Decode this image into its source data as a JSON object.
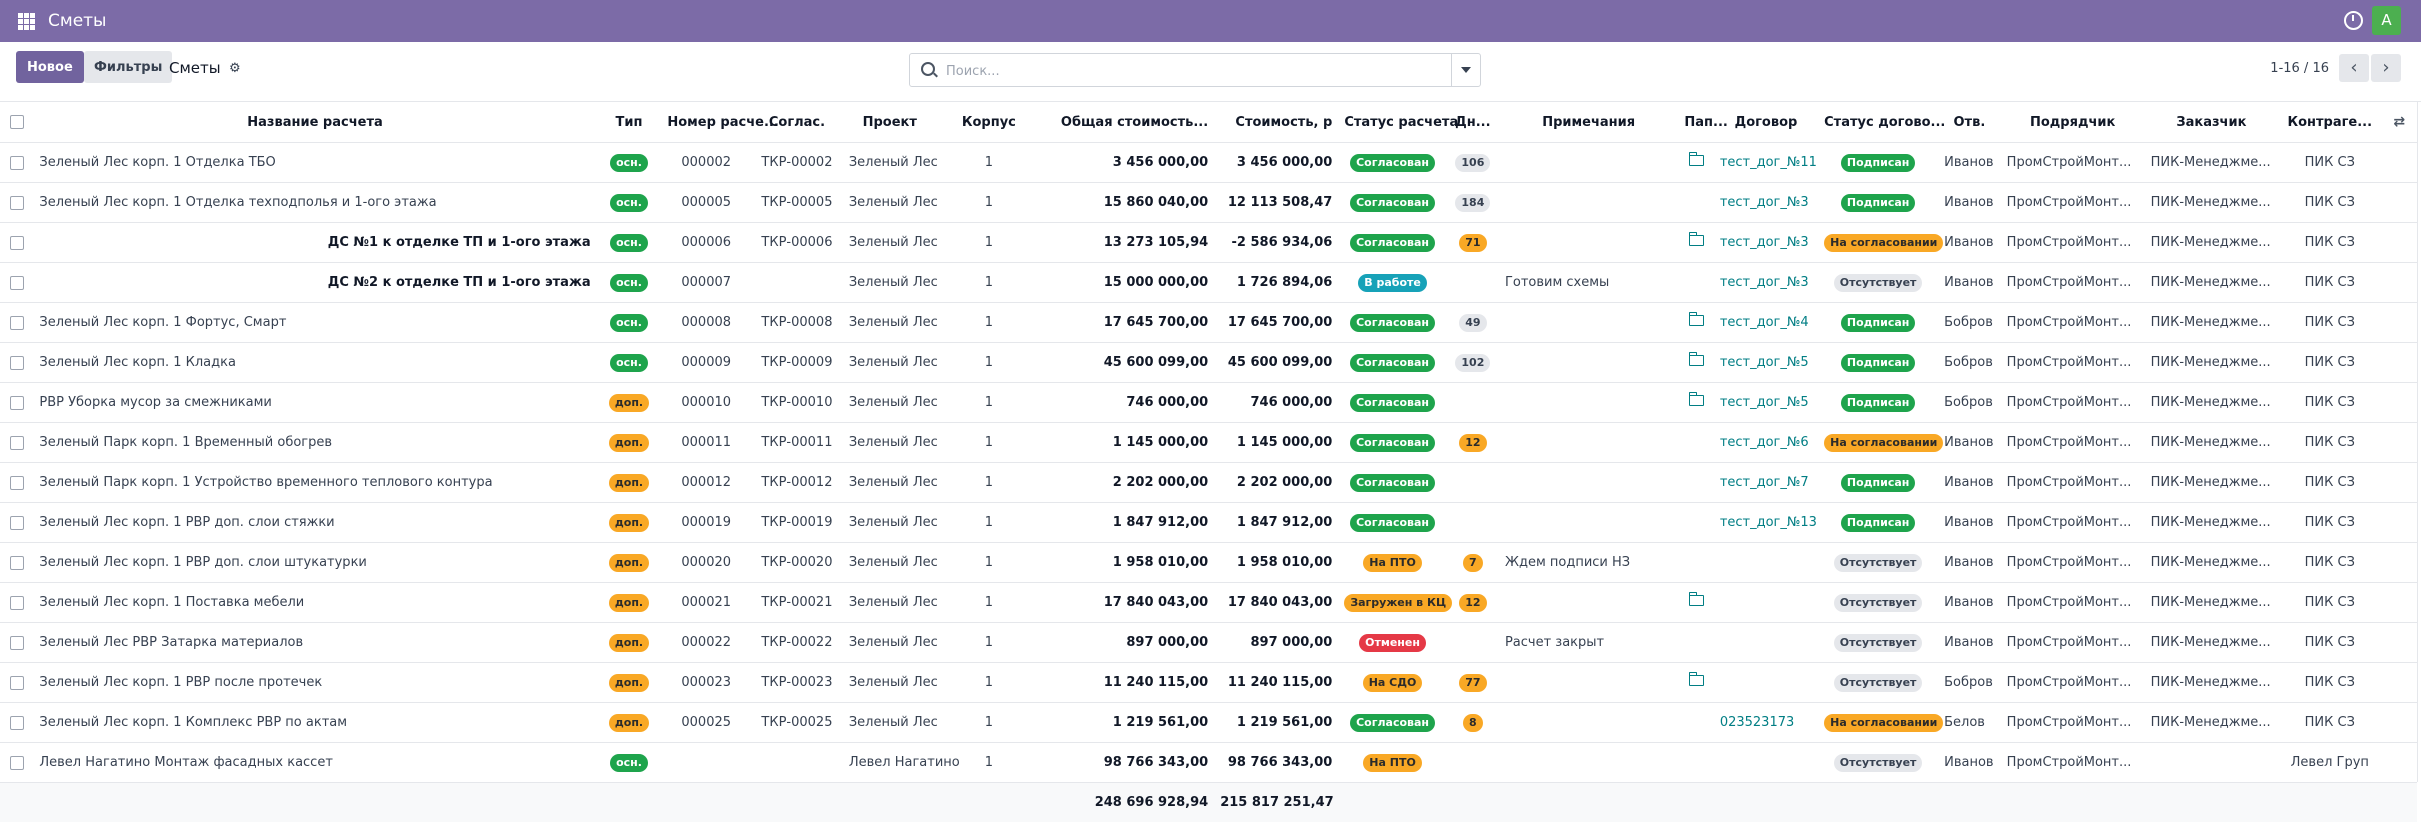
{
  "navbar": {
    "app_title": "Сметы",
    "avatar_letter": "A"
  },
  "controls": {
    "new_label": "Новое",
    "filters_label": "Фильтры",
    "breadcrumb": "Сметы",
    "search_placeholder": "Поиск...",
    "pager": "1-16 / 16"
  },
  "columns": [
    "Название расчета",
    "Тип",
    "Номер расче...",
    "Соглас.",
    "Проект",
    "Корпус",
    "Общая стоимость...",
    "Стоимость, р",
    "Статус расчета",
    "Дн...",
    "Примечания",
    "Пап...",
    "Договор",
    "Статус догово...",
    "Отв.",
    "Подрядчик",
    "Заказчик",
    "Контраге..."
  ],
  "rows": [
    {
      "name": "Зеленый Лес корп. 1 Отделка ТБО",
      "bold": false,
      "type": "осн.",
      "num": "000002",
      "agr": "ТКР-00002",
      "project": "Зеленый Лес",
      "korpus": "1",
      "total": "3 456 000,00",
      "cost": "3 456 000,00",
      "status": "Согласован",
      "status_color": "green",
      "days": "106",
      "days_color": "gray",
      "note": "",
      "folder": true,
      "contract": "тест_дог_№11",
      "cstatus": "Подписан",
      "cstatus_color": "green",
      "resp": "Иванов",
      "contractor": "ПромСтройМонт...",
      "customer": "ПИК-Менеджме...",
      "counterparty": "ПИК СЗ"
    },
    {
      "name": "Зеленый Лес корп. 1 Отделка техподполья и 1-ого этажа",
      "bold": false,
      "type": "осн.",
      "num": "000005",
      "agr": "ТКР-00005",
      "project": "Зеленый Лес",
      "korpus": "1",
      "total": "15 860 040,00",
      "cost": "12 113 508,47",
      "status": "Согласован",
      "status_color": "green",
      "days": "184",
      "days_color": "gray",
      "note": "",
      "folder": false,
      "contract": "тест_дог_№3",
      "cstatus": "Подписан",
      "cstatus_color": "green",
      "resp": "Иванов",
      "contractor": "ПромСтройМонт...",
      "customer": "ПИК-Менеджме...",
      "counterparty": "ПИК СЗ"
    },
    {
      "name": "ДС №1 к отделке ТП и 1-ого этажа",
      "bold": true,
      "type": "осн.",
      "num": "000006",
      "agr": "ТКР-00006",
      "project": "Зеленый Лес",
      "korpus": "1",
      "total": "13 273 105,94",
      "cost": "-2 586 934,06",
      "status": "Согласован",
      "status_color": "green",
      "days": "71",
      "days_color": "orange",
      "note": "",
      "folder": true,
      "contract": "тест_дог_№3",
      "cstatus": "На согласовании",
      "cstatus_color": "orange",
      "resp": "Иванов",
      "contractor": "ПромСтройМонт...",
      "customer": "ПИК-Менеджме...",
      "counterparty": "ПИК СЗ"
    },
    {
      "name": "ДС №2 к отделке ТП и 1-ого этажа",
      "bold": true,
      "type": "осн.",
      "num": "000007",
      "agr": "",
      "project": "Зеленый Лес",
      "korpus": "1",
      "total": "15 000 000,00",
      "cost": "1 726 894,06",
      "status": "В работе",
      "status_color": "blue",
      "days": "",
      "days_color": "gray",
      "note": "Готовим схемы",
      "folder": false,
      "contract": "тест_дог_№3",
      "cstatus": "Отсутствует",
      "cstatus_color": "gray",
      "resp": "Иванов",
      "contractor": "ПромСтройМонт...",
      "customer": "ПИК-Менеджме...",
      "counterparty": "ПИК СЗ"
    },
    {
      "name": "Зеленый Лес корп. 1 Фортус, Смарт",
      "bold": false,
      "type": "осн.",
      "num": "000008",
      "agr": "ТКР-00008",
      "project": "Зеленый Лес",
      "korpus": "1",
      "total": "17 645 700,00",
      "cost": "17 645 700,00",
      "status": "Согласован",
      "status_color": "green",
      "days": "49",
      "days_color": "gray",
      "note": "",
      "folder": true,
      "contract": "тест_дог_№4",
      "cstatus": "Подписан",
      "cstatus_color": "green",
      "resp": "Бобров",
      "contractor": "ПромСтройМонт...",
      "customer": "ПИК-Менеджме...",
      "counterparty": "ПИК СЗ"
    },
    {
      "name": "Зеленый Лес корп. 1 Кладка",
      "bold": false,
      "type": "осн.",
      "num": "000009",
      "agr": "ТКР-00009",
      "project": "Зеленый Лес",
      "korpus": "1",
      "total": "45 600 099,00",
      "cost": "45 600 099,00",
      "status": "Согласован",
      "status_color": "green",
      "days": "102",
      "days_color": "gray",
      "note": "",
      "folder": true,
      "contract": "тест_дог_№5",
      "cstatus": "Подписан",
      "cstatus_color": "green",
      "resp": "Бобров",
      "contractor": "ПромСтройМонт...",
      "customer": "ПИК-Менеджме...",
      "counterparty": "ПИК СЗ"
    },
    {
      "name": "РВР Уборка мусор за смежниками",
      "bold": false,
      "type": "доп.",
      "num": "000010",
      "agr": "ТКР-00010",
      "project": "Зеленый Лес",
      "korpus": "1",
      "total": "746 000,00",
      "cost": "746 000,00",
      "status": "Согласован",
      "status_color": "green",
      "days": "",
      "days_color": "gray",
      "note": "",
      "folder": true,
      "contract": "тест_дог_№5",
      "cstatus": "Подписан",
      "cstatus_color": "green",
      "resp": "Бобров",
      "contractor": "ПромСтройМонт...",
      "customer": "ПИК-Менеджме...",
      "counterparty": "ПИК СЗ"
    },
    {
      "name": "Зеленый Парк корп. 1 Временный обогрев",
      "bold": false,
      "type": "доп.",
      "num": "000011",
      "agr": "ТКР-00011",
      "project": "Зеленый Лес",
      "korpus": "1",
      "total": "1 145 000,00",
      "cost": "1 145 000,00",
      "status": "Согласован",
      "status_color": "green",
      "days": "12",
      "days_color": "orange",
      "note": "",
      "folder": false,
      "contract": "тест_дог_№6",
      "cstatus": "На согласовании",
      "cstatus_color": "orange",
      "resp": "Иванов",
      "contractor": "ПромСтройМонт...",
      "customer": "ПИК-Менеджме...",
      "counterparty": "ПИК СЗ"
    },
    {
      "name": "Зеленый Парк корп. 1 Устройство временного теплового контура",
      "bold": false,
      "type": "доп.",
      "num": "000012",
      "agr": "ТКР-00012",
      "project": "Зеленый Лес",
      "korpus": "1",
      "total": "2 202 000,00",
      "cost": "2 202 000,00",
      "status": "Согласован",
      "status_color": "green",
      "days": "",
      "days_color": "gray",
      "note": "",
      "folder": false,
      "contract": "тест_дог_№7",
      "cstatus": "Подписан",
      "cstatus_color": "green",
      "resp": "Иванов",
      "contractor": "ПромСтройМонт...",
      "customer": "ПИК-Менеджме...",
      "counterparty": "ПИК СЗ"
    },
    {
      "name": "Зеленый Лес корп. 1 РВР доп. слои стяжки",
      "bold": false,
      "type": "доп.",
      "num": "000019",
      "agr": "ТКР-00019",
      "project": "Зеленый Лес",
      "korpus": "1",
      "total": "1 847 912,00",
      "cost": "1 847 912,00",
      "status": "Согласован",
      "status_color": "green",
      "days": "",
      "days_color": "gray",
      "note": "",
      "folder": false,
      "contract": "тест_дог_№13",
      "cstatus": "Подписан",
      "cstatus_color": "green",
      "resp": "Иванов",
      "contractor": "ПромСтройМонт...",
      "customer": "ПИК-Менеджме...",
      "counterparty": "ПИК СЗ"
    },
    {
      "name": "Зеленый Лес корп. 1 РВР доп. слои штукатурки",
      "bold": false,
      "type": "доп.",
      "num": "000020",
      "agr": "ТКР-00020",
      "project": "Зеленый Лес",
      "korpus": "1",
      "total": "1 958 010,00",
      "cost": "1 958 010,00",
      "status": "На ПТО",
      "status_color": "orange",
      "days": "7",
      "days_color": "orange",
      "note": "Ждем подписи НЗ",
      "folder": false,
      "contract": "",
      "cstatus": "Отсутствует",
      "cstatus_color": "gray",
      "resp": "Иванов",
      "contractor": "ПромСтройМонт...",
      "customer": "ПИК-Менеджме...",
      "counterparty": "ПИК СЗ"
    },
    {
      "name": "Зеленый Лес корп. 1 Поставка мебели",
      "bold": false,
      "type": "доп.",
      "num": "000021",
      "agr": "ТКР-00021",
      "project": "Зеленый Лес",
      "korpus": "1",
      "total": "17 840 043,00",
      "cost": "17 840 043,00",
      "status": "Загружен в КЦ",
      "status_color": "orange",
      "days": "12",
      "days_color": "orange",
      "note": "",
      "folder": true,
      "contract": "",
      "cstatus": "Отсутствует",
      "cstatus_color": "gray",
      "resp": "Иванов",
      "contractor": "ПромСтройМонт...",
      "customer": "ПИК-Менеджме...",
      "counterparty": "ПИК СЗ"
    },
    {
      "name": "Зеленый Лес РВР Затарка материалов",
      "bold": false,
      "type": "доп.",
      "num": "000022",
      "agr": "ТКР-00022",
      "project": "Зеленый Лес",
      "korpus": "1",
      "total": "897 000,00",
      "cost": "897 000,00",
      "status": "Отменен",
      "status_color": "red",
      "days": "",
      "days_color": "gray",
      "note": "Расчет закрыт",
      "folder": false,
      "contract": "",
      "cstatus": "Отсутствует",
      "cstatus_color": "gray",
      "resp": "Иванов",
      "contractor": "ПромСтройМонт...",
      "customer": "ПИК-Менеджме...",
      "counterparty": "ПИК СЗ"
    },
    {
      "name": "Зеленый Лес корп. 1 РВР после протечек",
      "bold": false,
      "type": "доп.",
      "num": "000023",
      "agr": "ТКР-00023",
      "project": "Зеленый Лес",
      "korpus": "1",
      "total": "11 240 115,00",
      "cost": "11 240 115,00",
      "status": "На СДО",
      "status_color": "orange",
      "days": "77",
      "days_color": "orange",
      "note": "",
      "folder": true,
      "contract": "",
      "cstatus": "Отсутствует",
      "cstatus_color": "gray",
      "resp": "Бобров",
      "contractor": "ПромСтройМонт...",
      "customer": "ПИК-Менеджме...",
      "counterparty": "ПИК СЗ"
    },
    {
      "name": "Зеленый Лес корп. 1 Комплекс РВР по актам",
      "bold": false,
      "type": "доп.",
      "num": "000025",
      "agr": "ТКР-00025",
      "project": "Зеленый Лес",
      "korpus": "1",
      "total": "1 219 561,00",
      "cost": "1 219 561,00",
      "status": "Согласован",
      "status_color": "green",
      "days": "8",
      "days_color": "orange",
      "note": "",
      "folder": false,
      "contract": "023523173",
      "cstatus": "На согласовании",
      "cstatus_color": "orange",
      "resp": "Белов",
      "contractor": "ПромСтройМонт...",
      "customer": "ПИК-Менеджме...",
      "counterparty": "ПИК СЗ"
    },
    {
      "name": "Левел Нагатино Монтаж фасадных кассет",
      "bold": false,
      "type": "осн.",
      "num": "",
      "agr": "",
      "project": "Левел Нагатино",
      "korpus": "1",
      "total": "98 766 343,00",
      "cost": "98 766 343,00",
      "status": "На ПТО",
      "status_color": "orange",
      "days": "",
      "days_color": "gray",
      "note": "",
      "folder": false,
      "contract": "",
      "cstatus": "Отсутствует",
      "cstatus_color": "gray",
      "resp": "Иванов",
      "contractor": "ПромСтройМонт...",
      "customer": "",
      "counterparty": "Левел Груп"
    }
  ],
  "totals": {
    "total": "248 696 928,94",
    "cost": "215 817 251,47"
  }
}
